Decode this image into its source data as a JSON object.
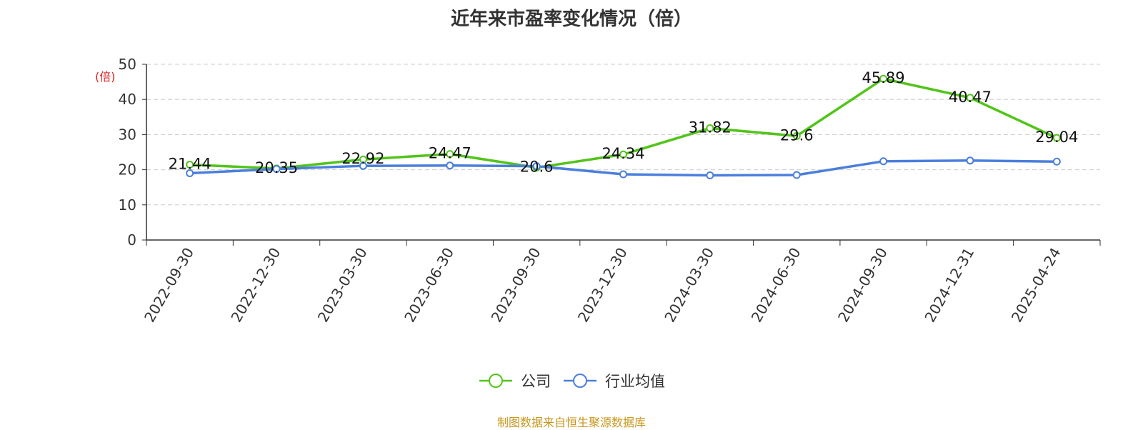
{
  "title": "近年来市盈率变化情况（倍）",
  "source_text": "制图数据来自恒生聚源数据库",
  "colors": {
    "company": "#52c41a",
    "industry": "#4a7fdc",
    "grid": "#cccccc",
    "axis": "#333333",
    "unit": "#e02020",
    "source": "#c8971e"
  },
  "chart_data": {
    "type": "line",
    "ylabel": "(倍)",
    "ylim": [
      0,
      50
    ],
    "yticks": [
      0,
      10,
      20,
      30,
      40,
      50
    ],
    "grid": true,
    "legend_position": "bottom-center",
    "categories": [
      "2022-09-30",
      "2022-12-30",
      "2023-03-30",
      "2023-06-30",
      "2023-09-30",
      "2023-12-30",
      "2024-03-30",
      "2024-06-30",
      "2024-09-30",
      "2024-12-31",
      "2025-04-24"
    ],
    "series": [
      {
        "name": "公司",
        "values": [
          21.44,
          20.35,
          22.92,
          24.47,
          20.6,
          24.34,
          31.82,
          29.6,
          45.89,
          40.47,
          29.04
        ],
        "labels": [
          "21.44",
          "20.35",
          "22.92",
          "24.47",
          "20.6",
          "24.34",
          "31.82",
          "29.6",
          "45.89",
          "40.47",
          "29.04"
        ]
      },
      {
        "name": "行业均值",
        "values": [
          19.0,
          20.2,
          21.1,
          21.2,
          21.0,
          18.7,
          18.4,
          18.5,
          22.4,
          22.6,
          22.3
        ]
      }
    ]
  }
}
